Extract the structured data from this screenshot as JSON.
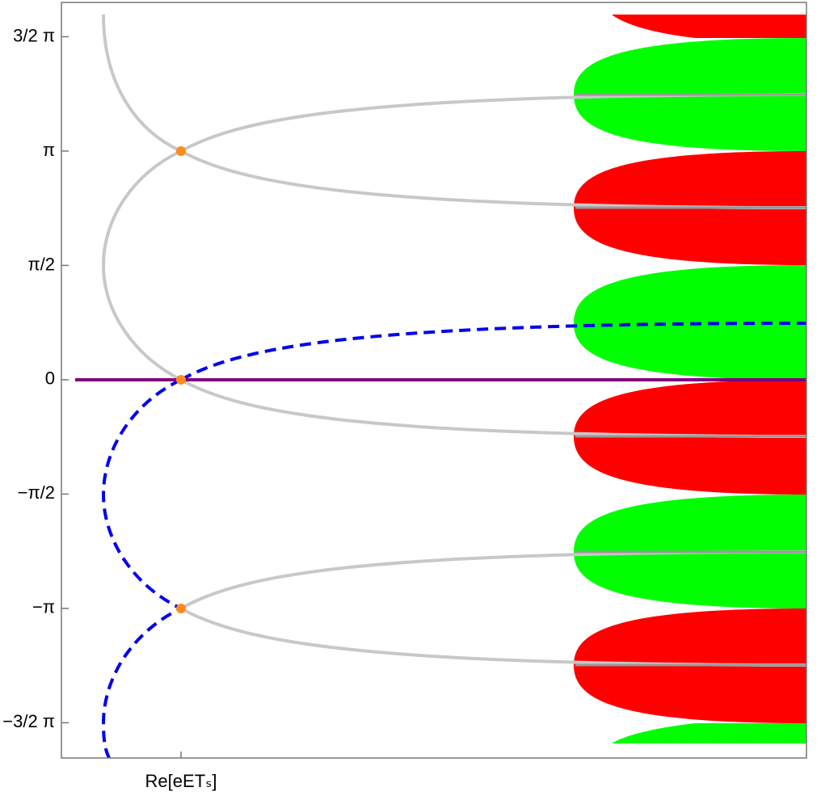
{
  "chart_data": {
    "type": "line",
    "ylim": [
      -1.654,
      1.65
    ],
    "yticks": [
      {
        "value": 1.5,
        "label": "3/2 π"
      },
      {
        "value": 1,
        "label": "π"
      },
      {
        "value": 0.5,
        "label": "π/2"
      },
      0,
      {
        "value": -0.5,
        "label": "−π/2"
      },
      {
        "value": -1,
        "label": "−π"
      },
      {
        "value": -1.5,
        "label": "−3/2 π"
      }
    ],
    "x_tick_label": "Re[eETₛ]"
  }
}
